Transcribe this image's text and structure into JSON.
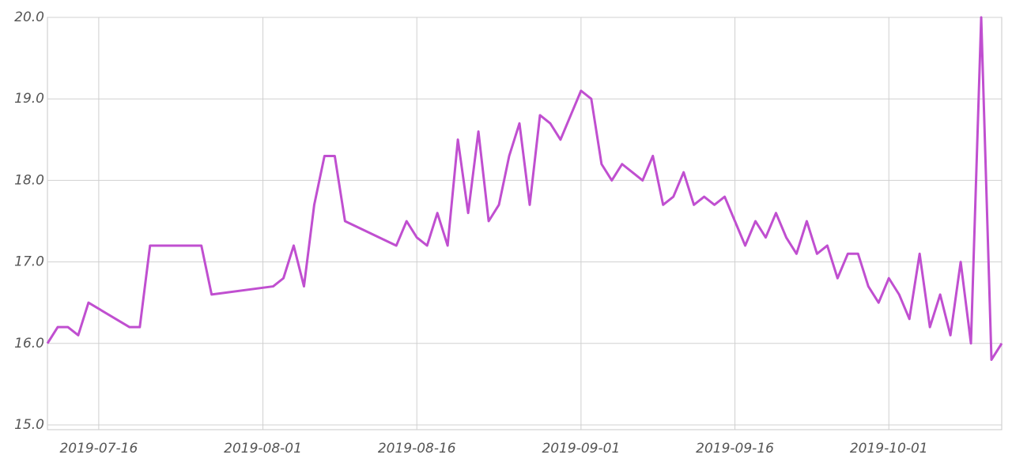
{
  "chart_data": {
    "type": "line",
    "color": "#c04fd0",
    "grid": true,
    "x": [
      "2019-07-11",
      "2019-07-12",
      "2019-07-13",
      "2019-07-14",
      "2019-07-15",
      "2019-07-19",
      "2019-07-20",
      "2019-07-21",
      "2019-07-26",
      "2019-07-27",
      "2019-08-02",
      "2019-08-03",
      "2019-08-04",
      "2019-08-05",
      "2019-08-06",
      "2019-08-07",
      "2019-08-08",
      "2019-08-09",
      "2019-08-14",
      "2019-08-15",
      "2019-08-16",
      "2019-08-17",
      "2019-08-18",
      "2019-08-19",
      "2019-08-20",
      "2019-08-21",
      "2019-08-22",
      "2019-08-23",
      "2019-08-24",
      "2019-08-25",
      "2019-08-26",
      "2019-08-27",
      "2019-08-28",
      "2019-08-29",
      "2019-08-30",
      "2019-08-31",
      "2019-09-01",
      "2019-09-02",
      "2019-09-03",
      "2019-09-04",
      "2019-09-05",
      "2019-09-06",
      "2019-09-07",
      "2019-09-08",
      "2019-09-09",
      "2019-09-10",
      "2019-09-11",
      "2019-09-12",
      "2019-09-13",
      "2019-09-14",
      "2019-09-15",
      "2019-09-16",
      "2019-09-17",
      "2019-09-18",
      "2019-09-19",
      "2019-09-20",
      "2019-09-21",
      "2019-09-22",
      "2019-09-23",
      "2019-09-24",
      "2019-09-25",
      "2019-09-26",
      "2019-09-27",
      "2019-09-28",
      "2019-09-29",
      "2019-09-30",
      "2019-10-01",
      "2019-10-02",
      "2019-10-03",
      "2019-10-04",
      "2019-10-05",
      "2019-10-06",
      "2019-10-07",
      "2019-10-08",
      "2019-10-09",
      "2019-10-10",
      "2019-10-11",
      "2019-10-12"
    ],
    "values": [
      16.0,
      16.2,
      16.2,
      16.1,
      16.5,
      16.2,
      16.2,
      17.2,
      17.2,
      16.6,
      16.7,
      16.8,
      17.2,
      16.7,
      17.7,
      18.3,
      18.3,
      17.5,
      17.2,
      17.5,
      17.3,
      17.2,
      17.6,
      17.2,
      18.5,
      17.6,
      18.6,
      17.5,
      17.7,
      18.3,
      18.7,
      17.7,
      18.8,
      18.7,
      18.5,
      18.8,
      19.1,
      19.0,
      18.2,
      18.0,
      18.2,
      18.1,
      18.0,
      18.3,
      17.7,
      17.8,
      18.1,
      17.7,
      17.8,
      17.7,
      17.8,
      17.5,
      17.2,
      17.5,
      17.3,
      17.6,
      17.3,
      17.1,
      17.5,
      17.1,
      17.2,
      16.8,
      17.1,
      17.1,
      16.7,
      16.5,
      16.8,
      16.6,
      16.3,
      17.1,
      16.2,
      16.6,
      16.1,
      17.0,
      16.0,
      20.0,
      15.8,
      16.0
    ],
    "xlim": [
      "2019-07-11",
      "2019-10-12"
    ],
    "xticks": [
      "2019-07-16",
      "2019-08-01",
      "2019-08-16",
      "2019-09-01",
      "2019-09-16",
      "2019-10-01"
    ],
    "ylim": [
      15,
      20
    ],
    "yticks": [
      {
        "value": 15,
        "label": "15.0"
      },
      {
        "value": 16,
        "label": "16.0"
      },
      {
        "value": 17,
        "label": "17.0"
      },
      {
        "value": 18,
        "label": "18.0"
      },
      {
        "value": 19,
        "label": "19.0"
      },
      {
        "value": 20,
        "label": "20.0"
      }
    ]
  }
}
